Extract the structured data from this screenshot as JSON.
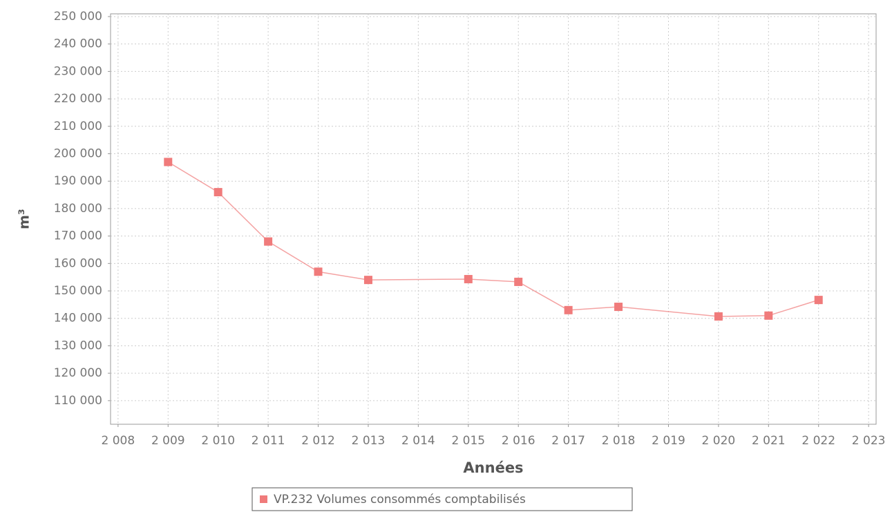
{
  "chart_data": {
    "type": "line",
    "ylabel": "m³",
    "xlabel": "Années",
    "x": [
      2009,
      2010,
      2011,
      2012,
      2013,
      2015,
      2016,
      2017,
      2018,
      2020,
      2021,
      2022
    ],
    "series": [
      {
        "name": "VP.232 Volumes consommés comptabilisés",
        "color": "#f07b7b",
        "values": [
          197000,
          186000,
          168000,
          157000,
          154000,
          154300,
          153300,
          143000,
          144200,
          140700,
          141000,
          146700
        ]
      }
    ],
    "xlim": [
      2007.85,
      2023.15
    ],
    "xticks": [
      {
        "value": 2008,
        "label": "2 008"
      },
      {
        "value": 2009,
        "label": "2 009"
      },
      {
        "value": 2010,
        "label": "2 010"
      },
      {
        "value": 2011,
        "label": "2 011"
      },
      {
        "value": 2012,
        "label": "2 012"
      },
      {
        "value": 2013,
        "label": "2 013"
      },
      {
        "value": 2014,
        "label": "2 014"
      },
      {
        "value": 2015,
        "label": "2 015"
      },
      {
        "value": 2016,
        "label": "2 016"
      },
      {
        "value": 2017,
        "label": "2 017"
      },
      {
        "value": 2018,
        "label": "2 018"
      },
      {
        "value": 2019,
        "label": "2 019"
      },
      {
        "value": 2020,
        "label": "2 020"
      },
      {
        "value": 2021,
        "label": "2 021"
      },
      {
        "value": 2022,
        "label": "2 022"
      },
      {
        "value": 2023,
        "label": "2 023"
      }
    ],
    "ylim": [
      101400,
      251000
    ],
    "yticks": [
      {
        "value": 110000,
        "label": "110 000"
      },
      {
        "value": 120000,
        "label": "120 000"
      },
      {
        "value": 130000,
        "label": "130 000"
      },
      {
        "value": 140000,
        "label": "140 000"
      },
      {
        "value": 150000,
        "label": "150 000"
      },
      {
        "value": 160000,
        "label": "160 000"
      },
      {
        "value": 170000,
        "label": "170 000"
      },
      {
        "value": 180000,
        "label": "180 000"
      },
      {
        "value": 190000,
        "label": "190 000"
      },
      {
        "value": 200000,
        "label": "200 000"
      },
      {
        "value": 210000,
        "label": "210 000"
      },
      {
        "value": 220000,
        "label": "220 000"
      },
      {
        "value": 230000,
        "label": "230 000"
      },
      {
        "value": 240000,
        "label": "240 000"
      },
      {
        "value": 250000,
        "label": "250 000"
      }
    ],
    "grid": true
  }
}
